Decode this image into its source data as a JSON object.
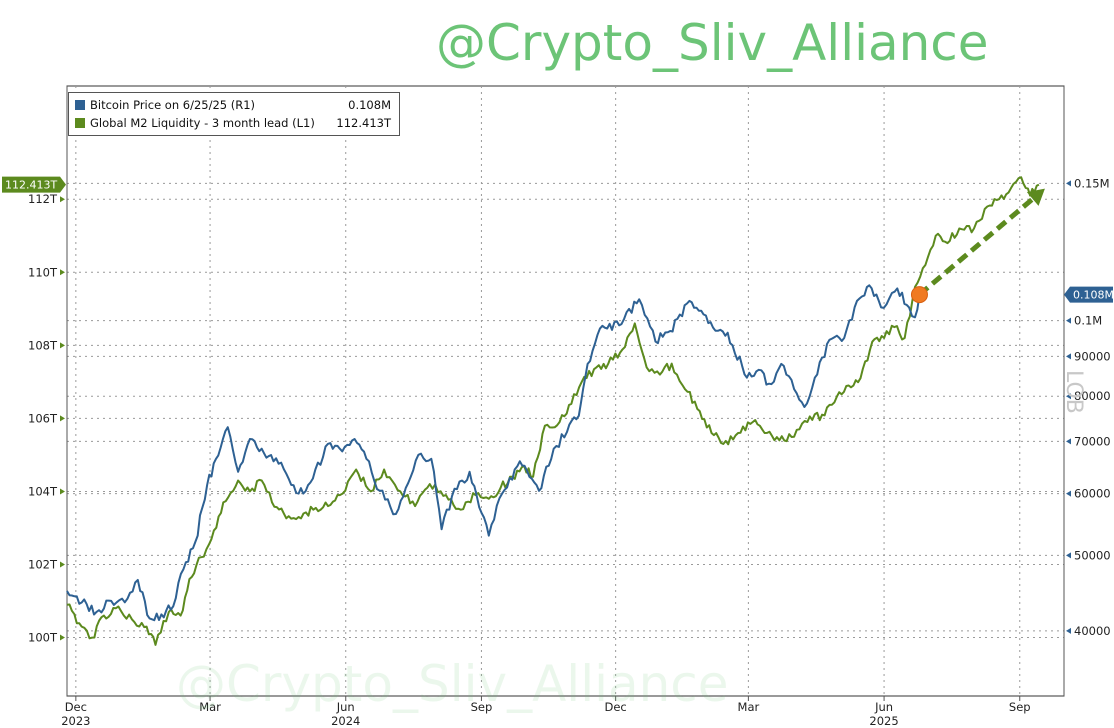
{
  "watermark": "@Crypto_Sliv_Alliance",
  "watermark_faint": "@Crypto_Sliv_Alliance",
  "side_mark": "LOB",
  "colors": {
    "btc": "#2e6193",
    "m2": "#5c8a1e",
    "marker": "#f07a22",
    "grid": "#9a9a9a"
  },
  "chart_data": {
    "type": "line",
    "title": "",
    "legend": [
      {
        "label": "Bitcoin Price on 6/25/25 (R1)",
        "value": "0.108M",
        "color": "#2e6193"
      },
      {
        "label": "Global M2 Liquidity - 3 month lead (L1)",
        "value": "112.413T",
        "color": "#5c8a1e"
      }
    ],
    "left_axis": {
      "ylim": [
        98.4,
        115.1
      ],
      "ticks": [
        "100T",
        "102T",
        "104T",
        "106T",
        "108T",
        "110T",
        "112T"
      ],
      "tick_values": [
        100,
        102,
        104,
        106,
        108,
        110,
        112
      ],
      "last_label": "112.413T"
    },
    "right_axis": {
      "scale": "log",
      "ylim": [
        33000,
        200000
      ],
      "ticks": [
        "40000",
        "50000",
        "60000",
        "70000",
        "80000",
        "90000",
        "0.1M",
        "0.15M"
      ],
      "tick_values": [
        40000,
        50000,
        60000,
        70000,
        80000,
        90000,
        100000,
        150000
      ],
      "last_label": "0.108M"
    },
    "x_axis": {
      "range": [
        "2023-11-25",
        "2025-10-01"
      ],
      "ticks": [
        {
          "date": "2023-12-01",
          "month": "Dec",
          "year": "2023"
        },
        {
          "date": "2024-03-01",
          "month": "Mar",
          "year": ""
        },
        {
          "date": "2024-06-01",
          "month": "Jun",
          "year": "2024"
        },
        {
          "date": "2024-09-01",
          "month": "Sep",
          "year": ""
        },
        {
          "date": "2024-12-01",
          "month": "Dec",
          "year": ""
        },
        {
          "date": "2025-03-01",
          "month": "Mar",
          "year": ""
        },
        {
          "date": "2025-06-01",
          "month": "Jun",
          "year": "2025"
        },
        {
          "date": "2025-09-01",
          "month": "Sep",
          "year": ""
        }
      ]
    },
    "series": [
      {
        "name": "Bitcoin Price on 6/25/25 (R1)",
        "axis": "right",
        "points": [
          [
            "2023-11-25",
            45000
          ],
          [
            "2023-12-05",
            43500
          ],
          [
            "2023-12-15",
            42300
          ],
          [
            "2023-12-25",
            43700
          ],
          [
            "2024-01-05",
            44000
          ],
          [
            "2024-01-12",
            46500
          ],
          [
            "2024-01-20",
            41500
          ],
          [
            "2024-01-28",
            42000
          ],
          [
            "2024-02-05",
            43000
          ],
          [
            "2024-02-12",
            48000
          ],
          [
            "2024-02-20",
            52000
          ],
          [
            "2024-02-28",
            61500
          ],
          [
            "2024-03-05",
            66500
          ],
          [
            "2024-03-13",
            73000
          ],
          [
            "2024-03-20",
            64000
          ],
          [
            "2024-03-28",
            70500
          ],
          [
            "2024-04-05",
            68500
          ],
          [
            "2024-04-13",
            66000
          ],
          [
            "2024-04-20",
            64500
          ],
          [
            "2024-04-30",
            60000
          ],
          [
            "2024-05-08",
            62000
          ],
          [
            "2024-05-20",
            69500
          ],
          [
            "2024-05-28",
            68500
          ],
          [
            "2024-06-07",
            70500
          ],
          [
            "2024-06-15",
            66500
          ],
          [
            "2024-06-24",
            60500
          ],
          [
            "2024-07-05",
            56500
          ],
          [
            "2024-07-15",
            63000
          ],
          [
            "2024-07-22",
            67500
          ],
          [
            "2024-07-29",
            66500
          ],
          [
            "2024-08-05",
            54000
          ],
          [
            "2024-08-12",
            59500
          ],
          [
            "2024-08-24",
            64000
          ],
          [
            "2024-09-06",
            53000
          ],
          [
            "2024-09-15",
            60000
          ],
          [
            "2024-09-27",
            66000
          ],
          [
            "2024-10-10",
            60500
          ],
          [
            "2024-10-20",
            68500
          ],
          [
            "2024-10-29",
            72000
          ],
          [
            "2024-11-06",
            75500
          ],
          [
            "2024-11-12",
            88000
          ],
          [
            "2024-11-22",
            98500
          ],
          [
            "2024-12-05",
            99000
          ],
          [
            "2024-12-17",
            106500
          ],
          [
            "2024-12-28",
            94000
          ],
          [
            "2025-01-07",
            97000
          ],
          [
            "2025-01-20",
            106000
          ],
          [
            "2025-01-28",
            103000
          ],
          [
            "2025-02-05",
            98000
          ],
          [
            "2025-02-15",
            96500
          ],
          [
            "2025-02-28",
            84500
          ],
          [
            "2025-03-08",
            86500
          ],
          [
            "2025-03-15",
            83000
          ],
          [
            "2025-03-25",
            87500
          ],
          [
            "2025-04-08",
            77500
          ],
          [
            "2025-04-15",
            84500
          ],
          [
            "2025-04-25",
            94500
          ],
          [
            "2025-05-05",
            95000
          ],
          [
            "2025-05-12",
            104000
          ],
          [
            "2025-05-22",
            111000
          ],
          [
            "2025-05-30",
            104000
          ],
          [
            "2025-06-10",
            110000
          ],
          [
            "2025-06-18",
            104000
          ],
          [
            "2025-06-22",
            101000
          ],
          [
            "2025-06-25",
            108000
          ]
        ]
      },
      {
        "name": "Global M2 Liquidity - 3 month lead (L1)",
        "axis": "left",
        "points": [
          [
            "2023-11-25",
            100.9
          ],
          [
            "2023-12-05",
            100.3
          ],
          [
            "2023-12-12",
            100.0
          ],
          [
            "2023-12-20",
            100.6
          ],
          [
            "2023-12-28",
            100.8
          ],
          [
            "2024-01-08",
            100.5
          ],
          [
            "2024-01-18",
            100.3
          ],
          [
            "2024-01-24",
            99.8
          ],
          [
            "2024-02-02",
            100.7
          ],
          [
            "2024-02-10",
            100.6
          ],
          [
            "2024-02-16",
            101.6
          ],
          [
            "2024-02-24",
            102.2
          ],
          [
            "2024-03-02",
            102.7
          ],
          [
            "2024-03-10",
            103.7
          ],
          [
            "2024-03-20",
            104.3
          ],
          [
            "2024-03-28",
            104.0
          ],
          [
            "2024-04-05",
            104.3
          ],
          [
            "2024-04-12",
            103.7
          ],
          [
            "2024-04-20",
            103.4
          ],
          [
            "2024-04-30",
            103.3
          ],
          [
            "2024-05-10",
            103.5
          ],
          [
            "2024-05-20",
            103.6
          ],
          [
            "2024-05-28",
            103.9
          ],
          [
            "2024-06-08",
            104.6
          ],
          [
            "2024-06-18",
            104.0
          ],
          [
            "2024-06-27",
            104.6
          ],
          [
            "2024-07-08",
            104.0
          ],
          [
            "2024-07-18",
            103.6
          ],
          [
            "2024-07-28",
            104.2
          ],
          [
            "2024-08-08",
            103.9
          ],
          [
            "2024-08-18",
            103.5
          ],
          [
            "2024-08-28",
            103.9
          ],
          [
            "2024-09-06",
            103.8
          ],
          [
            "2024-09-14",
            104.1
          ],
          [
            "2024-09-22",
            104.4
          ],
          [
            "2024-09-30",
            104.7
          ],
          [
            "2024-10-06",
            104.4
          ],
          [
            "2024-10-14",
            105.8
          ],
          [
            "2024-10-24",
            105.9
          ],
          [
            "2024-11-01",
            106.4
          ],
          [
            "2024-11-08",
            107.0
          ],
          [
            "2024-11-18",
            107.4
          ],
          [
            "2024-11-26",
            107.5
          ],
          [
            "2024-12-04",
            107.8
          ],
          [
            "2024-12-14",
            108.6
          ],
          [
            "2024-12-22",
            107.4
          ],
          [
            "2024-12-31",
            107.2
          ],
          [
            "2025-01-08",
            107.5
          ],
          [
            "2025-01-17",
            106.8
          ],
          [
            "2025-01-27",
            106.2
          ],
          [
            "2025-02-04",
            105.6
          ],
          [
            "2025-02-12",
            105.3
          ],
          [
            "2025-02-22",
            105.6
          ],
          [
            "2025-03-04",
            105.9
          ],
          [
            "2025-03-12",
            105.6
          ],
          [
            "2025-03-22",
            105.4
          ],
          [
            "2025-04-01",
            105.5
          ],
          [
            "2025-04-10",
            105.9
          ],
          [
            "2025-04-20",
            106.1
          ],
          [
            "2025-04-30",
            106.6
          ],
          [
            "2025-05-08",
            106.9
          ],
          [
            "2025-05-16",
            107.1
          ],
          [
            "2025-05-24",
            108.1
          ],
          [
            "2025-06-01",
            108.2
          ],
          [
            "2025-06-08",
            108.5
          ],
          [
            "2025-06-15",
            108.2
          ],
          [
            "2025-06-22",
            109.6
          ],
          [
            "2025-06-29",
            110.2
          ],
          [
            "2025-07-06",
            111.0
          ],
          [
            "2025-07-14",
            110.8
          ],
          [
            "2025-07-22",
            111.2
          ],
          [
            "2025-08-01",
            111.2
          ],
          [
            "2025-08-10",
            111.8
          ],
          [
            "2025-08-18",
            112.0
          ],
          [
            "2025-08-26",
            112.3
          ],
          [
            "2025-09-02",
            112.6
          ],
          [
            "2025-09-08",
            112.1
          ],
          [
            "2025-09-14",
            112.4
          ]
        ]
      }
    ],
    "annotations": [
      {
        "type": "marker",
        "date": "2025-06-25",
        "value": 108000,
        "axis": "right"
      },
      {
        "type": "dashed-arrow",
        "from": [
          "2025-06-25",
          108000
        ],
        "to": [
          "2025-09-14",
          112.4
        ],
        "meaning": "projection"
      }
    ]
  }
}
